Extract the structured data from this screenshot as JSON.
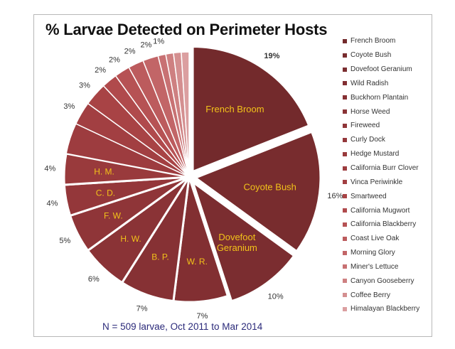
{
  "chart_data": {
    "type": "pie",
    "title": "% Larvae Detected on Perimeter Hosts",
    "footnote": "N = 509 larvae, Oct 2011 to Mar 2014",
    "legend_position": "right",
    "categories": [
      "French Broom",
      "Coyote Bush",
      "Dovefoot Geranium",
      "Wild Radish",
      "Buckhorn Plantain",
      "Horse Weed",
      "Fireweed",
      "Curly Dock",
      "Hedge Mustard",
      "California Burr Clover",
      "Vinca Periwinkle",
      "Smartweed",
      "California Mugwort",
      "California Blackberry",
      "Coast Live Oak",
      "Morning Glory",
      "Miner's Lettuce",
      "Canyon Gooseberry",
      "Coffee Berry",
      "Himalayan Blackberry"
    ],
    "values": [
      19,
      16,
      10,
      7,
      7,
      6,
      5,
      4,
      4,
      4,
      3,
      3,
      2,
      2,
      2,
      2,
      1,
      1,
      1,
      1
    ],
    "percent_labels": [
      "19%",
      "16%",
      "10%",
      "7%",
      "7%",
      "6%",
      "5%",
      "4%",
      "4%",
      "",
      "3%",
      "3%",
      "2%",
      "2%",
      "2%",
      "2%",
      "1%",
      "",
      "",
      ""
    ],
    "slice_labels": [
      "French Broom",
      "Coyote Bush",
      "Dovefoot Geranium",
      "W. R.",
      "B. P.",
      "H. W.",
      "F. W.",
      "C. D.",
      "H. M.",
      "",
      "",
      "",
      "",
      "",
      "",
      "",
      "",
      "",
      "",
      ""
    ],
    "exploded": [
      true,
      true,
      true,
      false,
      false,
      false,
      false,
      false,
      false,
      false,
      false,
      false,
      false,
      false,
      false,
      false,
      false,
      false,
      false,
      false
    ],
    "colors": [
      "#732a2c",
      "#782c2e",
      "#7b2d30",
      "#822f32",
      "#863134",
      "#8a3336",
      "#8f3538",
      "#94373a",
      "#993a3c",
      "#9d3c3f",
      "#a23f42",
      "#a84345",
      "#b04a4c",
      "#b65254",
      "#bc5b5d",
      "#c26567",
      "#c87173",
      "#ce8081",
      "#d48f90",
      "#db9fa0"
    ]
  }
}
